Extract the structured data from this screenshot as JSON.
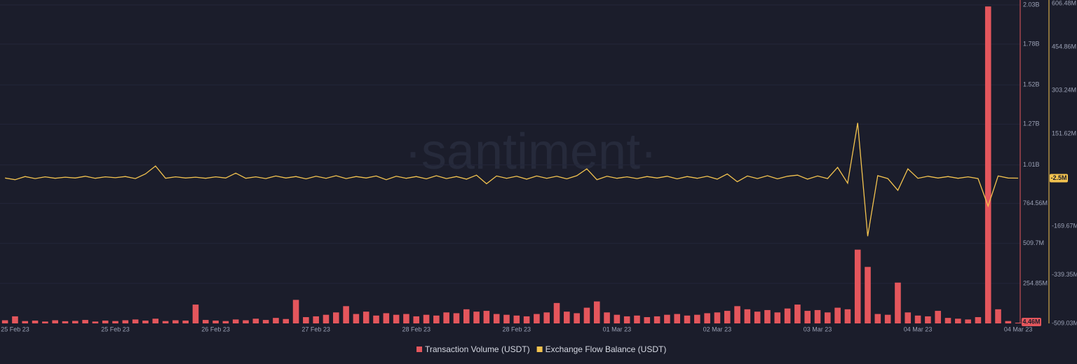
{
  "chart_data": {
    "type": "bar-line",
    "watermark": "·santiment·",
    "x": [
      -0.1,
      0,
      0.1,
      0.2,
      0.3,
      0.4,
      0.5,
      0.6,
      0.7,
      0.8,
      0.9,
      1,
      1.1,
      1.2,
      1.3,
      1.4,
      1.5,
      1.6,
      1.7,
      1.8,
      1.9,
      2,
      2.1,
      2.2,
      2.3,
      2.4,
      2.5,
      2.6,
      2.7,
      2.8,
      2.9,
      3,
      3.1,
      3.2,
      3.3,
      3.4,
      3.5,
      3.6,
      3.7,
      3.8,
      3.9,
      4,
      4.1,
      4.2,
      4.3,
      4.4,
      4.5,
      4.6,
      4.7,
      4.8,
      4.9,
      5,
      5.1,
      5.2,
      5.3,
      5.4,
      5.5,
      5.6,
      5.7,
      5.8,
      5.9,
      6,
      6.1,
      6.2,
      6.3,
      6.4,
      6.5,
      6.6,
      6.7,
      6.8,
      6.9,
      7,
      7.1,
      7.2,
      7.3,
      7.4,
      7.5,
      7.6,
      7.7,
      7.8,
      7.9,
      8,
      8.1,
      8.2,
      8.3,
      8.4,
      8.5,
      8.6,
      8.7,
      8.8,
      8.9,
      9,
      9.1,
      9.2,
      9.3,
      9.4,
      9.5,
      9.6,
      9.7,
      9.8,
      9.9,
      10
    ],
    "xlim": [
      -0.15,
      10.02
    ],
    "xticks": [
      {
        "value": 0,
        "label": "25 Feb 23"
      },
      {
        "value": 1,
        "label": "25 Feb 23"
      },
      {
        "value": 2,
        "label": "26 Feb 23"
      },
      {
        "value": 3,
        "label": "27 Feb 23"
      },
      {
        "value": 4,
        "label": "28 Feb 23"
      },
      {
        "value": 5,
        "label": "28 Feb 23"
      },
      {
        "value": 6,
        "label": "01 Mar 23"
      },
      {
        "value": 7,
        "label": "02 Mar 23"
      },
      {
        "value": 8,
        "label": "03 Mar 23"
      },
      {
        "value": 9,
        "label": "04 Mar 23"
      },
      {
        "value": 10,
        "label": "04 Mar 23"
      }
    ],
    "ylim": [
      0,
      2038800000
    ],
    "yticks": [
      {
        "value": 254850000,
        "label": "254.85M"
      },
      {
        "value": 509700000,
        "label": "509.7M"
      },
      {
        "value": 764560000,
        "label": "764.56M"
      },
      {
        "value": 1010000000,
        "label": "1.01B"
      },
      {
        "value": 1270000000,
        "label": "1.27B"
      },
      {
        "value": 1520000000,
        "label": "1.52B"
      },
      {
        "value": 1780000000,
        "label": "1.78B"
      },
      {
        "value": 2030000000,
        "label": "2.03B"
      }
    ],
    "y2lim": [
      -509030000,
      606480000
    ],
    "y2ticks": [
      {
        "value": -509030000,
        "label": "-509.03M"
      },
      {
        "value": -339350000,
        "label": "-339.35M"
      },
      {
        "value": -169670000,
        "label": "-169.67M"
      },
      {
        "value": 151620000,
        "label": "151.62M"
      },
      {
        "value": 303240000,
        "label": "303.24M"
      },
      {
        "value": 454860000,
        "label": "454.86M"
      },
      {
        "value": 606480000,
        "label": "606.48M"
      }
    ],
    "grid": true,
    "legend": "bottom",
    "series": [
      {
        "name": "Transaction Volume (USDT)",
        "color": "#e4565c",
        "type": "bar",
        "axis": "y",
        "marker": {
          "value": 4460000,
          "label": "4.46M"
        },
        "values": [
          20000000,
          45000000,
          15000000,
          18000000,
          12000000,
          20000000,
          14000000,
          16000000,
          22000000,
          12000000,
          18000000,
          15000000,
          20000000,
          25000000,
          18000000,
          30000000,
          15000000,
          20000000,
          18000000,
          120000000,
          22000000,
          18000000,
          15000000,
          25000000,
          20000000,
          30000000,
          22000000,
          35000000,
          28000000,
          150000000,
          40000000,
          45000000,
          55000000,
          70000000,
          110000000,
          60000000,
          75000000,
          50000000,
          65000000,
          55000000,
          60000000,
          45000000,
          55000000,
          50000000,
          70000000,
          65000000,
          90000000,
          75000000,
          80000000,
          60000000,
          55000000,
          50000000,
          45000000,
          60000000,
          70000000,
          130000000,
          75000000,
          65000000,
          100000000,
          140000000,
          70000000,
          55000000,
          45000000,
          50000000,
          40000000,
          45000000,
          55000000,
          60000000,
          50000000,
          55000000,
          65000000,
          70000000,
          80000000,
          110000000,
          90000000,
          75000000,
          85000000,
          70000000,
          95000000,
          120000000,
          80000000,
          85000000,
          70000000,
          100000000,
          90000000,
          470000000,
          360000000,
          60000000,
          55000000,
          260000000,
          70000000,
          50000000,
          45000000,
          80000000,
          35000000,
          30000000,
          25000000,
          40000000,
          2020000000,
          90000000,
          15000000,
          4460000
        ]
      },
      {
        "name": "Exchange Flow Balance (USDT)",
        "color": "#f3c34f",
        "type": "line",
        "axis": "y2",
        "marker": {
          "value": -2500000,
          "label": "-2.5M"
        },
        "values": [
          -2000000,
          -8000000,
          3000000,
          -4000000,
          2000000,
          -3000000,
          1000000,
          -2000000,
          4000000,
          -3000000,
          2000000,
          -1000000,
          3000000,
          -4000000,
          12000000,
          40000000,
          -3000000,
          2000000,
          -2000000,
          1000000,
          -3000000,
          2000000,
          -2000000,
          15000000,
          -3000000,
          2000000,
          -4000000,
          5000000,
          -2000000,
          3000000,
          -5000000,
          4000000,
          -3000000,
          6000000,
          -4000000,
          3000000,
          -2000000,
          5000000,
          -8000000,
          4000000,
          -3000000,
          3000000,
          -5000000,
          6000000,
          -4000000,
          3000000,
          -6000000,
          8000000,
          -22000000,
          5000000,
          -3000000,
          4000000,
          -6000000,
          5000000,
          -3000000,
          4000000,
          -5000000,
          6000000,
          30000000,
          -8000000,
          4000000,
          -3000000,
          2000000,
          -4000000,
          3000000,
          -2000000,
          4000000,
          -5000000,
          3000000,
          -3000000,
          4000000,
          -6000000,
          12000000,
          -15000000,
          5000000,
          -4000000,
          6000000,
          -5000000,
          4000000,
          8000000,
          -6000000,
          5000000,
          -4000000,
          35000000,
          -20000000,
          190000000,
          -205000000,
          6000000,
          -4000000,
          -45000000,
          30000000,
          -3000000,
          4000000,
          -2000000,
          3000000,
          -3000000,
          2000000,
          -4000000,
          -100000000,
          5000000,
          -2000000,
          -2500000
        ]
      }
    ]
  }
}
